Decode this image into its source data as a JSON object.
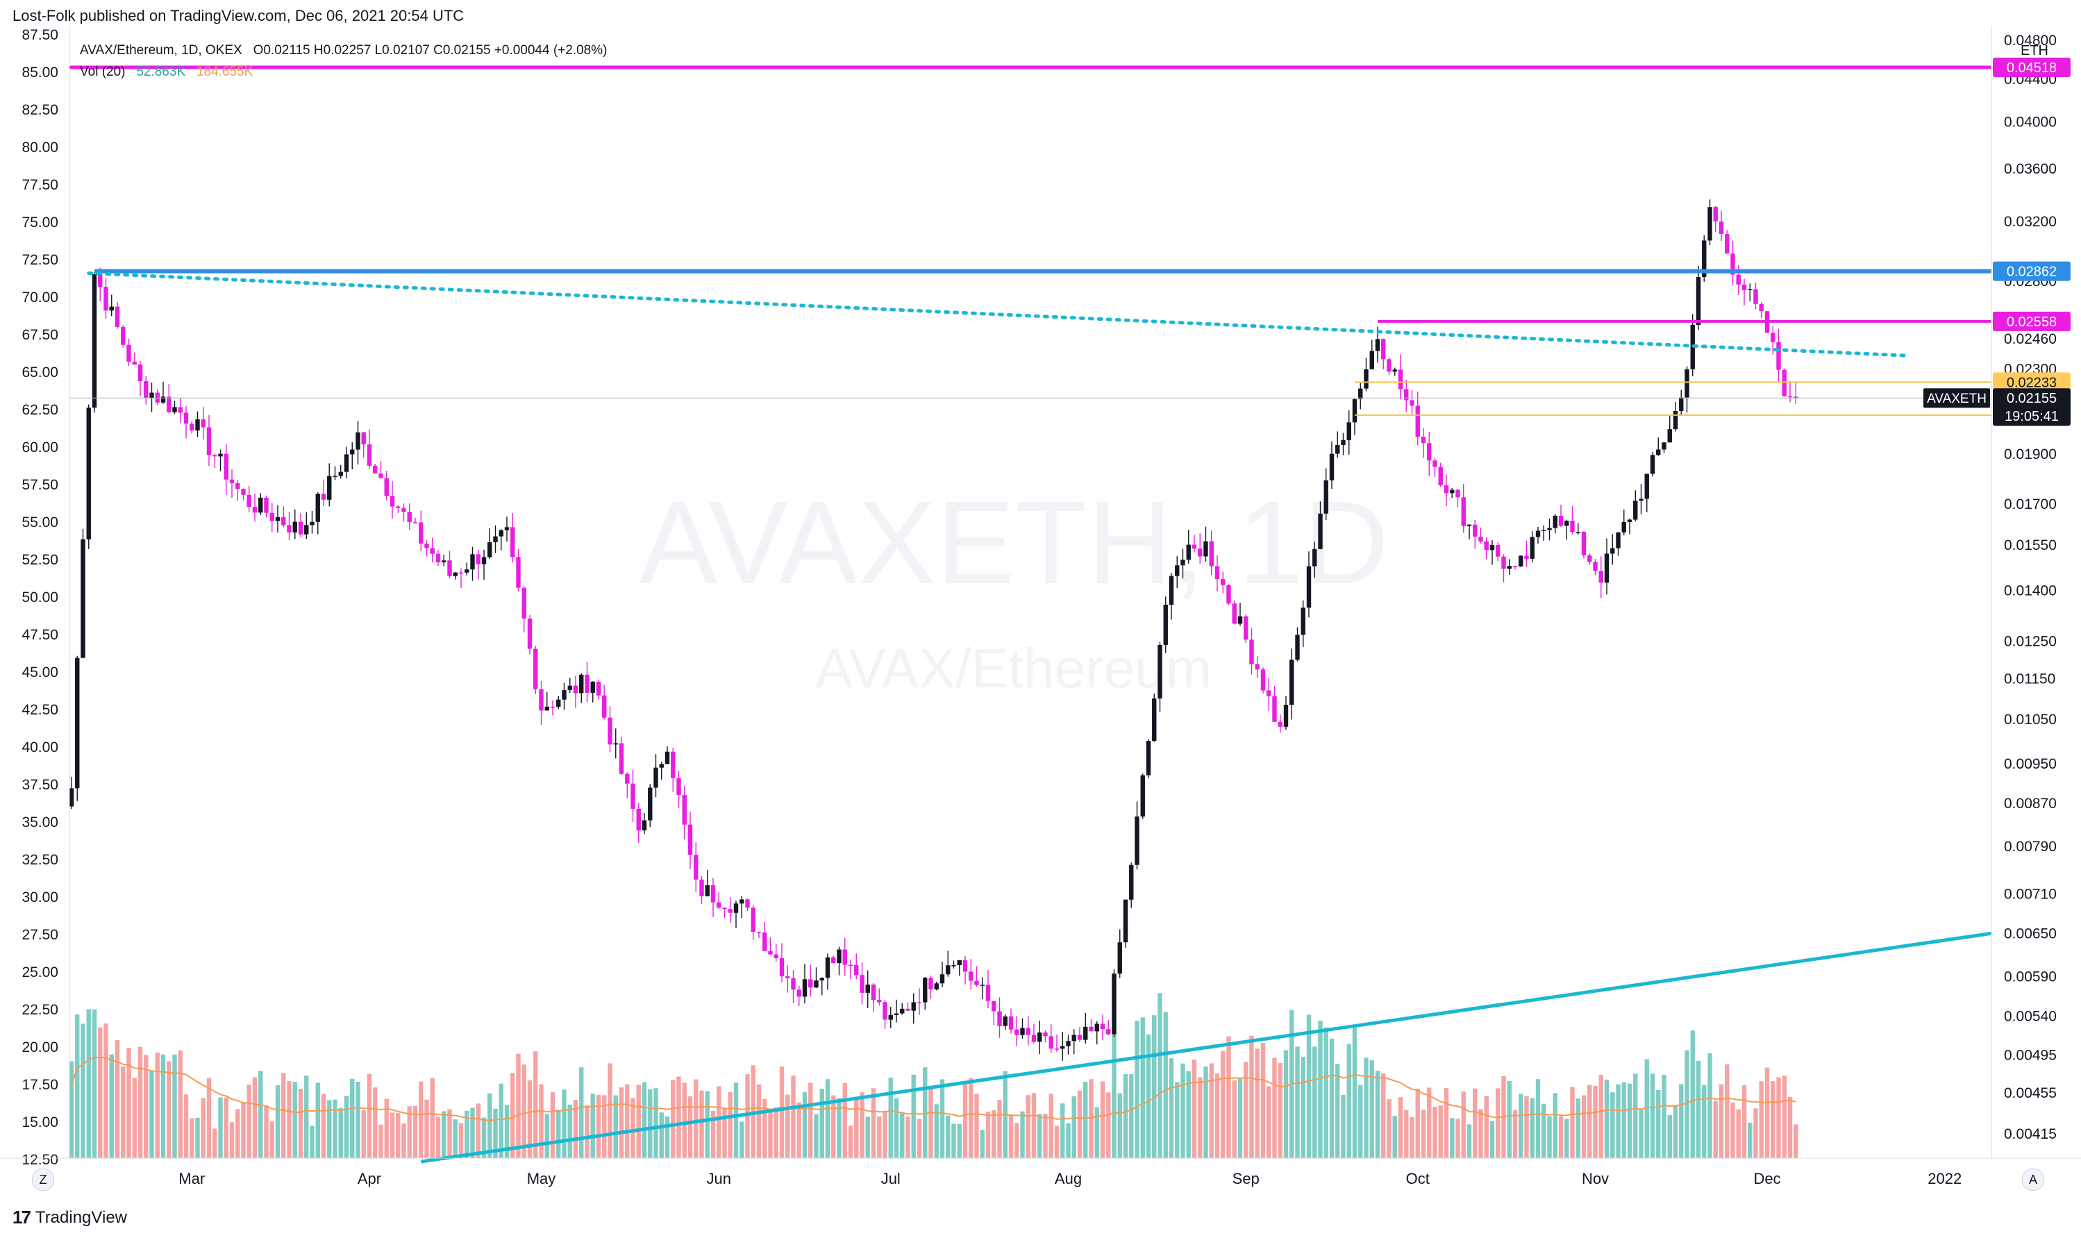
{
  "header": {
    "published_by": "Lost-Folk published on TradingView.com, Dec 06, 2021 20:54 UTC"
  },
  "legend": {
    "symbol": "AVAX/Ethereum, 1D, OKEX",
    "ohlc": "O0.02115  H0.02257  L0.02107  C0.02155  +0.00044 (+2.08%)",
    "vol_label": "Vol (20)",
    "vol_value": "52.863K",
    "vol_ma": "184.655K"
  },
  "watermark": {
    "symbol": "AVAXETH, 1D",
    "name": "AVAX/Ethereum"
  },
  "footer": {
    "brand": "TradingView",
    "z_button": "Z",
    "a_button": "A"
  },
  "price_labels": {
    "magenta_top": "0.04518",
    "blue": "0.02862",
    "magenta_mid": "0.02558",
    "yellow_top": "0.02233",
    "last_symbol": "AVAXETH",
    "last_price": "0.02155",
    "countdown": "19:05:41",
    "yellow_bottom": "0.02074",
    "currency": "ETH"
  },
  "colors": {
    "up": "#131722",
    "down": "#e91ee0",
    "vol_up": "#7ecdc4",
    "vol_down": "#f5a3a3",
    "vol_ma": "#f59a52",
    "magenta_line": "#e91ee0",
    "blue_line": "#2f8de4",
    "cyan_line": "#19b8d1",
    "yellow_line": "#f4c14a"
  },
  "chart_data": {
    "type": "candlestick",
    "title": "AVAX/Ethereum, 1D, OKEX",
    "left_axis": {
      "labels": [
        "87.50",
        "85.00",
        "82.50",
        "80.00",
        "77.50",
        "75.00",
        "72.50",
        "70.00",
        "67.50",
        "65.00",
        "62.50",
        "60.00",
        "57.50",
        "55.00",
        "52.50",
        "50.00",
        "47.50",
        "45.00",
        "42.50",
        "40.00",
        "37.50",
        "35.00",
        "32.50",
        "30.00",
        "27.50",
        "25.00",
        "22.50",
        "20.00",
        "17.50",
        "15.00",
        "12.50"
      ],
      "range": [
        12.5,
        87.5
      ]
    },
    "right_axis": {
      "unit": "ETH",
      "scale": "log",
      "labels": [
        "0.04800",
        "0.04400",
        "0.04000",
        "0.03600",
        "0.03200",
        "0.02800",
        "0.02460",
        "0.02300",
        "0.02180",
        "0.01900",
        "0.01700",
        "0.01550",
        "0.01400",
        "0.01250",
        "0.01150",
        "0.01050",
        "0.00950",
        "0.00870",
        "0.00790",
        "0.00710",
        "0.00650",
        "0.00590",
        "0.00540",
        "0.00495",
        "0.00455",
        "0.00415"
      ]
    },
    "x_axis": {
      "labels": [
        "Mar",
        "Apr",
        "May",
        "Jun",
        "Jul",
        "Aug",
        "Sep",
        "Oct",
        "Nov",
        "Dec",
        "2022"
      ]
    },
    "volume_indicator": {
      "name": "Vol (20)",
      "last": "52.863K",
      "ma": "184.655K"
    },
    "series_anchors": [
      {
        "date": "2021-02-08",
        "close": 0.009
      },
      {
        "date": "2021-02-12",
        "close": 0.0285
      },
      {
        "date": "2021-02-20",
        "close": 0.0222
      },
      {
        "date": "2021-03-01",
        "close": 0.0205
      },
      {
        "date": "2021-03-10",
        "close": 0.0172
      },
      {
        "date": "2021-03-20",
        "close": 0.016
      },
      {
        "date": "2021-03-30",
        "close": 0.0197
      },
      {
        "date": "2021-04-08",
        "close": 0.0162
      },
      {
        "date": "2021-04-15",
        "close": 0.0145
      },
      {
        "date": "2021-04-25",
        "close": 0.0158
      },
      {
        "date": "2021-05-01",
        "close": 0.0108
      },
      {
        "date": "2021-05-10",
        "close": 0.0115
      },
      {
        "date": "2021-05-18",
        "close": 0.0082
      },
      {
        "date": "2021-05-23",
        "close": 0.01
      },
      {
        "date": "2021-05-28",
        "close": 0.0072
      },
      {
        "date": "2021-06-05",
        "close": 0.0069
      },
      {
        "date": "2021-06-15",
        "close": 0.0057
      },
      {
        "date": "2021-06-22",
        "close": 0.0063
      },
      {
        "date": "2021-07-01",
        "close": 0.0053
      },
      {
        "date": "2021-07-12",
        "close": 0.0062
      },
      {
        "date": "2021-07-22",
        "close": 0.0052
      },
      {
        "date": "2021-07-31",
        "close": 0.005
      },
      {
        "date": "2021-08-08",
        "close": 0.0053
      },
      {
        "date": "2021-08-15",
        "close": 0.01
      },
      {
        "date": "2021-08-19",
        "close": 0.0148
      },
      {
        "date": "2021-08-25",
        "close": 0.0155
      },
      {
        "date": "2021-09-03",
        "close": 0.0118
      },
      {
        "date": "2021-09-07",
        "close": 0.0102
      },
      {
        "date": "2021-09-15",
        "close": 0.018
      },
      {
        "date": "2021-09-24",
        "close": 0.0248
      },
      {
        "date": "2021-10-03",
        "close": 0.019
      },
      {
        "date": "2021-10-10",
        "close": 0.0162
      },
      {
        "date": "2021-10-18",
        "close": 0.0145
      },
      {
        "date": "2021-10-25",
        "close": 0.0168
      },
      {
        "date": "2021-11-02",
        "close": 0.0145
      },
      {
        "date": "2021-11-10",
        "close": 0.018
      },
      {
        "date": "2021-11-16",
        "close": 0.0215
      },
      {
        "date": "2021-11-21",
        "close": 0.033
      },
      {
        "date": "2021-11-25",
        "close": 0.029
      },
      {
        "date": "2021-12-01",
        "close": 0.025
      },
      {
        "date": "2021-12-05",
        "close": 0.0212
      },
      {
        "date": "2021-12-06",
        "close": 0.02155
      }
    ],
    "horizontal_levels": [
      {
        "value": 0.04518,
        "color": "magenta"
      },
      {
        "value": 0.02862,
        "color": "blue"
      },
      {
        "value": 0.02558,
        "color": "magenta"
      },
      {
        "value": 0.02233,
        "color": "yellow"
      },
      {
        "value": 0.02074,
        "color": "yellow"
      }
    ],
    "trendlines": [
      {
        "style": "dotted",
        "color": "cyan",
        "from": {
          "date": "2021-02-11",
          "value": 0.0285
        },
        "to": {
          "date": "2021-12-25",
          "value": 0.0237
        }
      },
      {
        "style": "solid",
        "color": "cyan",
        "from": {
          "date": "2021-04-10",
          "value": 0.0039
        },
        "to": {
          "date": "2021-12-31",
          "value": 0.0065
        }
      }
    ],
    "grid": false
  }
}
